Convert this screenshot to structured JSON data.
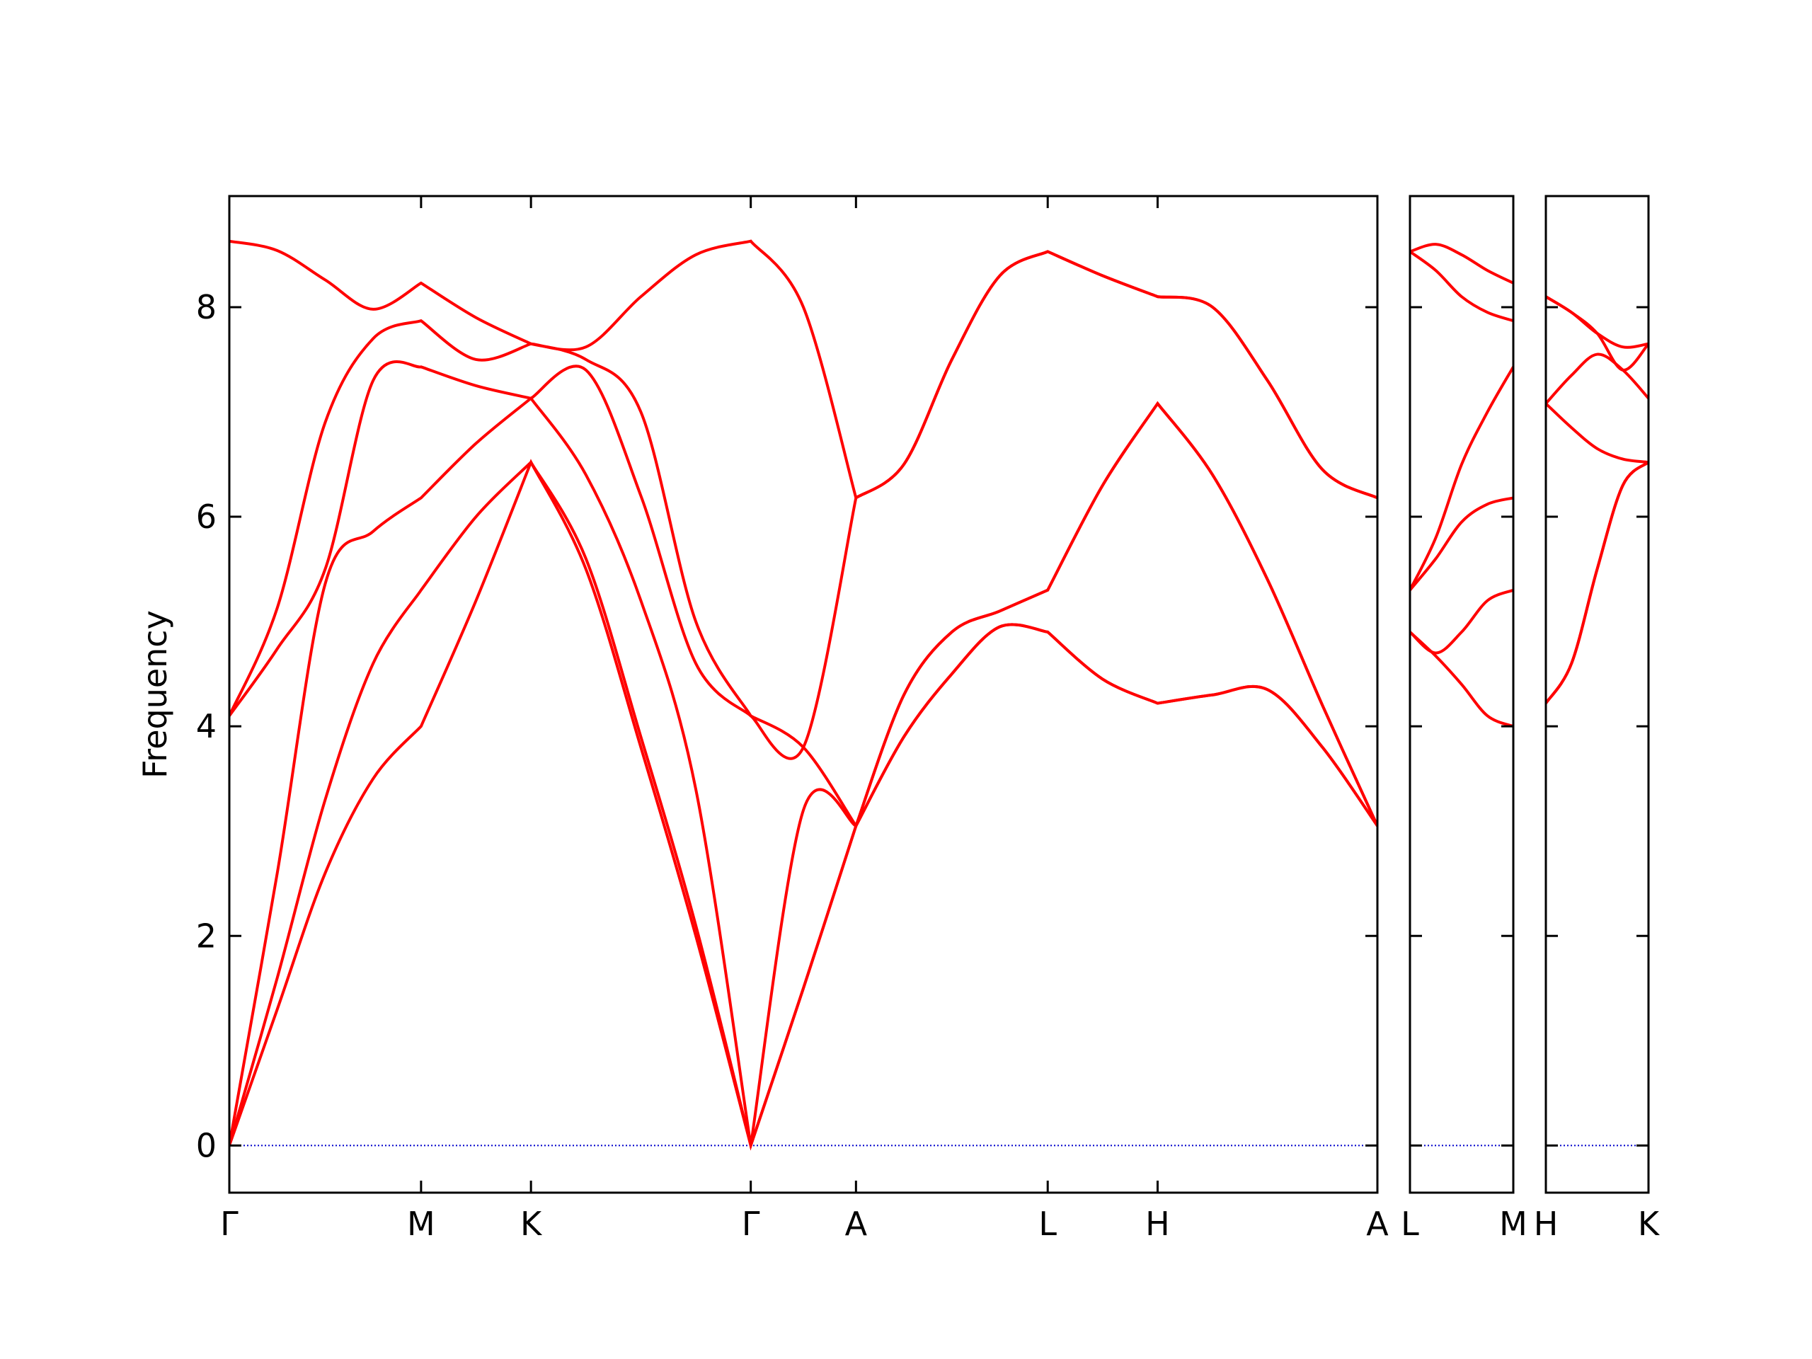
{
  "chart_data": [
    {
      "type": "line",
      "ylabel": "Frequency",
      "color": "#ff0000",
      "ylim": [
        -0.45,
        9.06
      ],
      "yticks": [
        0,
        2,
        4,
        6,
        8
      ],
      "ytick_labels": true,
      "xlim": [
        0,
        9.82
      ],
      "xticks": [
        {
          "value": 0,
          "label": "Γ"
        },
        {
          "value": 1.64,
          "label": "M"
        },
        {
          "value": 2.58,
          "label": "K"
        },
        {
          "value": 4.46,
          "label": "Γ"
        },
        {
          "value": 5.36,
          "label": "A"
        },
        {
          "value": 7.0,
          "label": "L"
        },
        {
          "value": 7.94,
          "label": "H"
        },
        {
          "value": 9.82,
          "label": "A"
        }
      ],
      "hlines": [
        0
      ],
      "hline_color": "#0000cc",
      "x": [
        0,
        0.41,
        0.82,
        1.23,
        1.64,
        2.11,
        2.58,
        3.05,
        3.52,
        3.99,
        4.46,
        4.91,
        5.36,
        5.77,
        6.18,
        6.59,
        7.0,
        7.47,
        7.94,
        8.41,
        8.88,
        9.35,
        9.82
      ],
      "series": [
        {
          "values": [
            0,
            1.3,
            2.6,
            3.5,
            4.0,
            5.2,
            6.52,
            5.5,
            3.8,
            2.0,
            0,
            1.5,
            3.05,
            3.9,
            4.5,
            4.95,
            4.9,
            4.45,
            4.22,
            4.3,
            4.35,
            3.8,
            3.05
          ]
        },
        {
          "values": [
            0,
            1.6,
            3.3,
            4.6,
            5.3,
            6.0,
            6.52,
            5.6,
            3.9,
            2.1,
            0,
            1.5,
            3.05,
            3.9,
            4.5,
            4.95,
            4.9,
            4.45,
            4.22,
            4.3,
            4.35,
            3.8,
            3.05
          ]
        },
        {
          "values": [
            0,
            2.6,
            5.36,
            5.86,
            6.18,
            6.7,
            7.13,
            6.4,
            5.2,
            3.4,
            0,
            3.2,
            3.05,
            4.3,
            4.9,
            5.1,
            5.3,
            6.3,
            7.08,
            6.4,
            5.4,
            4.2,
            3.05
          ]
        },
        {
          "values": [
            4.1,
            4.74,
            5.5,
            7.3,
            7.43,
            7.25,
            7.13,
            7.4,
            6.2,
            4.6,
            4.1,
            3.8,
            3.05,
            4.3,
            4.9,
            5.1,
            5.3,
            6.3,
            7.08,
            6.4,
            5.4,
            4.2,
            3.05
          ]
        },
        {
          "values": [
            4.1,
            5.13,
            6.9,
            7.7,
            7.87,
            7.5,
            7.65,
            7.5,
            7.0,
            5.0,
            4.1,
            3.8,
            6.18,
            6.5,
            7.5,
            8.3,
            8.53,
            8.3,
            8.1,
            8.0,
            7.3,
            6.45,
            6.18
          ]
        },
        {
          "values": [
            8.63,
            8.54,
            8.26,
            7.98,
            8.23,
            7.9,
            7.65,
            7.62,
            8.1,
            8.5,
            8.63,
            8.0,
            6.18,
            6.5,
            7.5,
            8.3,
            8.53,
            8.3,
            8.1,
            8.0,
            7.3,
            6.45,
            6.18
          ]
        }
      ]
    },
    {
      "type": "line",
      "color": "#ff0000",
      "ylim": [
        -0.45,
        9.06
      ],
      "yticks": [
        0,
        2,
        4,
        6,
        8
      ],
      "ytick_labels": false,
      "xlim": [
        0,
        0.88
      ],
      "xticks": [
        {
          "value": 0,
          "label": "L"
        },
        {
          "value": 0.88,
          "label": "M"
        }
      ],
      "hlines": [
        0
      ],
      "hline_color": "#0000cc",
      "x": [
        0,
        0.22,
        0.44,
        0.66,
        0.88
      ],
      "series": [
        {
          "values": [
            4.9,
            4.67,
            4.4,
            4.1,
            4.0
          ]
        },
        {
          "values": [
            4.9,
            4.7,
            4.9,
            5.2,
            5.3
          ]
        },
        {
          "values": [
            5.3,
            5.6,
            5.95,
            6.12,
            6.18
          ]
        },
        {
          "values": [
            5.3,
            5.8,
            6.5,
            7.0,
            7.43
          ]
        },
        {
          "values": [
            8.53,
            8.35,
            8.1,
            7.95,
            7.87
          ]
        },
        {
          "values": [
            8.53,
            8.6,
            8.5,
            8.35,
            8.23
          ]
        }
      ]
    },
    {
      "type": "line",
      "color": "#ff0000",
      "ylim": [
        -0.45,
        9.06
      ],
      "yticks": [
        0,
        2,
        4,
        6,
        8
      ],
      "ytick_labels": false,
      "xlim": [
        0,
        0.88
      ],
      "xticks": [
        {
          "value": 0,
          "label": "H"
        },
        {
          "value": 0.88,
          "label": "K"
        }
      ],
      "hlines": [
        0
      ],
      "hline_color": "#0000cc",
      "x": [
        0,
        0.22,
        0.44,
        0.66,
        0.88
      ],
      "series": [
        {
          "values": [
            4.22,
            4.6,
            5.5,
            6.3,
            6.52
          ]
        },
        {
          "values": [
            4.22,
            4.6,
            5.5,
            6.3,
            6.52
          ]
        },
        {
          "values": [
            7.08,
            6.85,
            6.65,
            6.55,
            6.52
          ]
        },
        {
          "values": [
            7.08,
            7.35,
            7.55,
            7.4,
            7.13
          ]
        },
        {
          "values": [
            8.1,
            7.95,
            7.75,
            7.4,
            7.65
          ]
        },
        {
          "values": [
            8.1,
            7.95,
            7.75,
            7.62,
            7.65
          ]
        }
      ]
    }
  ]
}
